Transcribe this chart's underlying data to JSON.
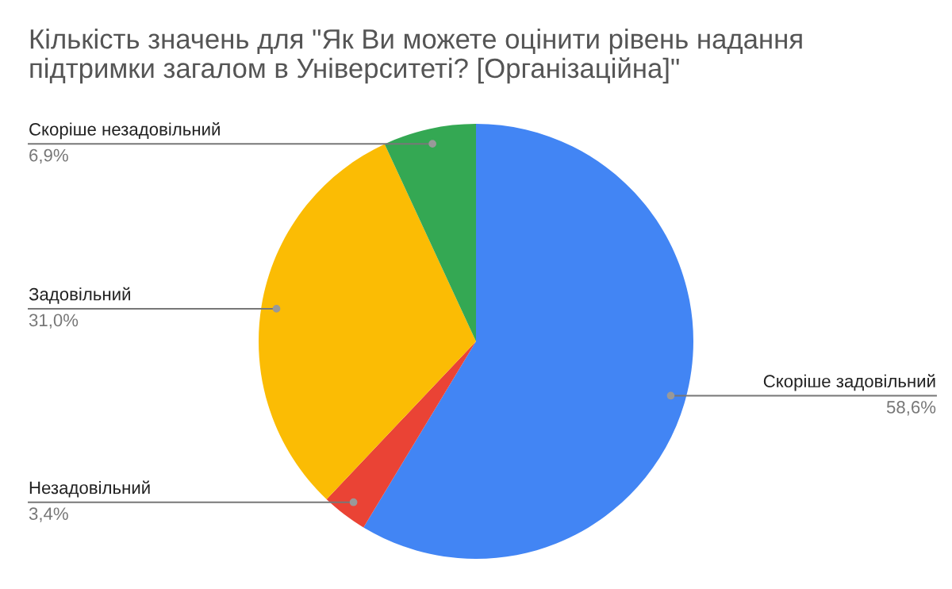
{
  "chart_data": {
    "type": "pie",
    "title": "Кількість значень для \"Як Ви можете оцінити рівень надання\nпідтримки загалом в Університеті? [Організаційна]\"",
    "categories": [
      "Скоріше задовільний",
      "Незадовільний",
      "Задовільний",
      "Скоріше незадовільний"
    ],
    "values": [
      58.6,
      3.4,
      31.0,
      6.9
    ],
    "colors": [
      "#4285f4",
      "#ea4335",
      "#fbbc04",
      "#34a853"
    ],
    "value_labels": [
      "58,6%",
      "3,4%",
      "31,0%",
      "6,9%"
    ],
    "legend": false
  }
}
